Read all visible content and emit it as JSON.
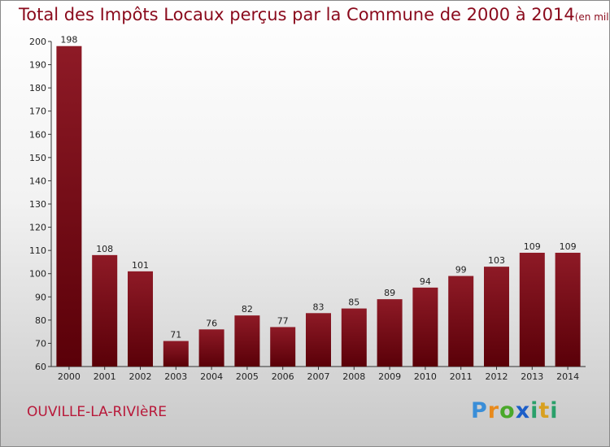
{
  "title": "Total des Impôts Locaux perçus par la Commune de 2000 à 2014",
  "unit": "(en milliers d'€)",
  "commune": "OUVILLE-LA-RIVIèRE",
  "logo": [
    "P",
    "r",
    "o",
    "x",
    "i",
    "t",
    "i"
  ],
  "colors": {
    "bar_top": "#8e1a26",
    "bar_bottom": "#5a0008",
    "title": "#8a0a1c",
    "commune": "#b8193a"
  },
  "chart_data": {
    "type": "bar",
    "categories": [
      "2000",
      "2001",
      "2002",
      "2003",
      "2004",
      "2005",
      "2006",
      "2007",
      "2008",
      "2009",
      "2010",
      "2011",
      "2012",
      "2013",
      "2014"
    ],
    "values": [
      198,
      108,
      101,
      71,
      76,
      82,
      77,
      83,
      85,
      89,
      94,
      99,
      103,
      109,
      109
    ],
    "ylim": [
      60,
      200
    ],
    "yticks": [
      60,
      70,
      80,
      90,
      100,
      110,
      120,
      130,
      140,
      150,
      160,
      170,
      180,
      190,
      200
    ],
    "grid": false,
    "title": "Total des Impôts Locaux perçus par la Commune de 2000 à 2014",
    "xlabel": "",
    "ylabel": ""
  }
}
